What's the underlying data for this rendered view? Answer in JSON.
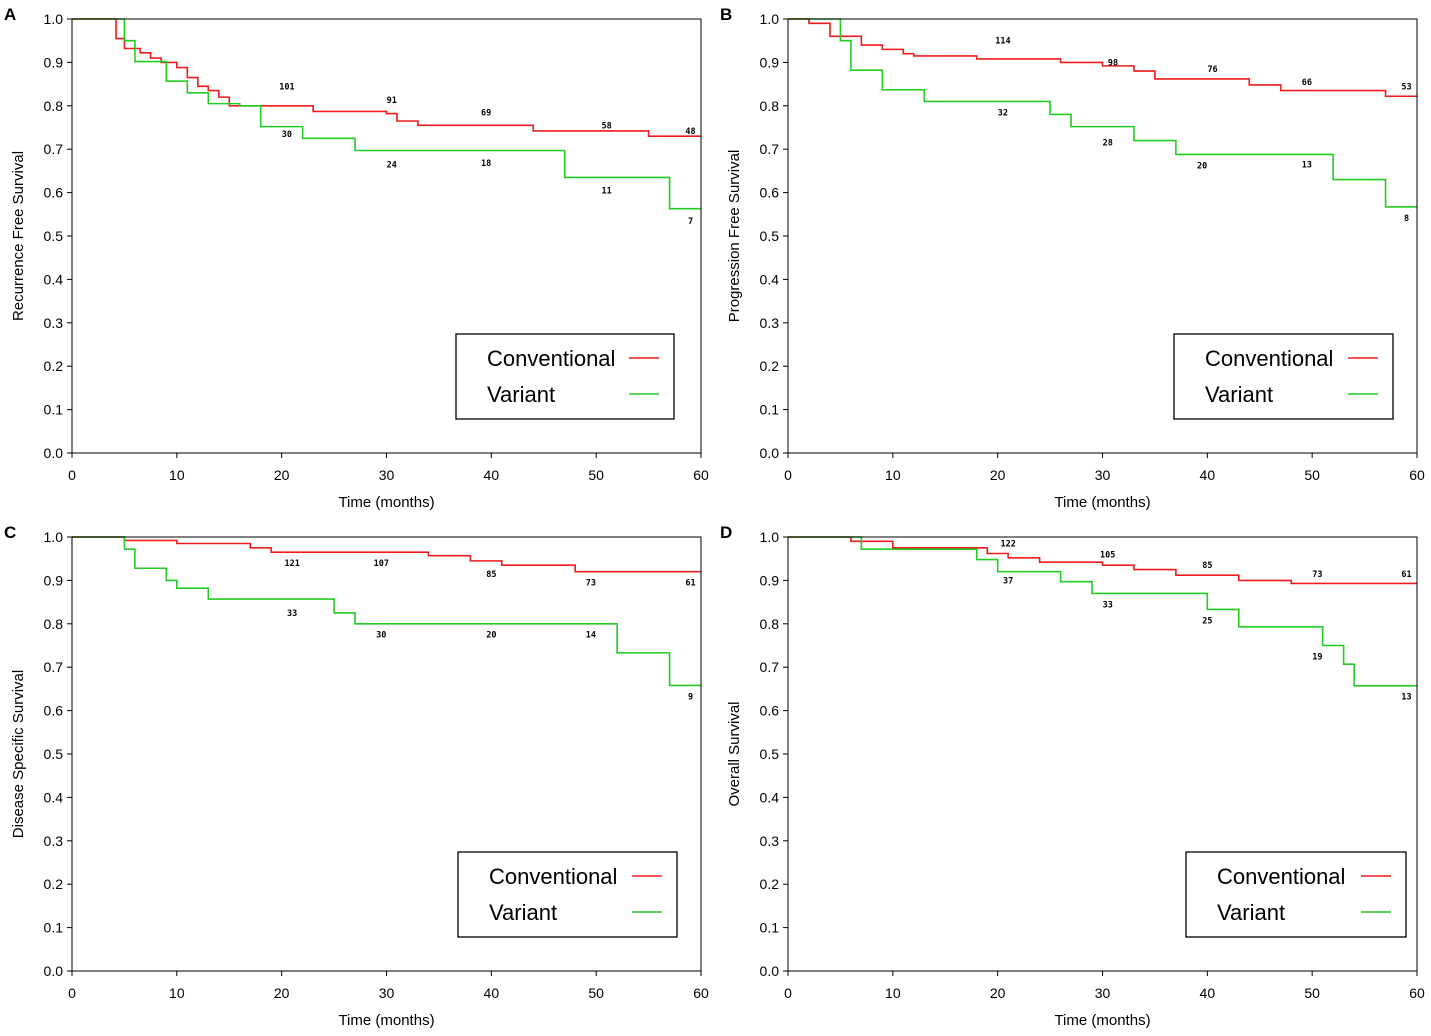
{
  "legend_labels": [
    "Conventional",
    "Variant"
  ],
  "colors": {
    "Conventional": "#ee1c1c",
    "Variant": "#22cc22"
  },
  "chart_data": [
    {
      "panel": "A",
      "type": "line",
      "title": "",
      "xlabel": "Time (months)",
      "ylabel": "Recurrence Free Survival",
      "xlim": [
        0,
        60
      ],
      "ylim": [
        0,
        1.0
      ],
      "xticks": [
        "0",
        "10",
        "20",
        "30",
        "40",
        "50",
        "60"
      ],
      "yticks": [
        "0.0",
        "0.1",
        "0.2",
        "0.3",
        "0.4",
        "0.5",
        "0.6",
        "0.7",
        "0.8",
        "0.9",
        "1.0"
      ],
      "legend_position": "bottom-right",
      "series": [
        {
          "name": "Conventional",
          "color": "#ee1c1c",
          "steps": [
            [
              0,
              1.0
            ],
            [
              4.2,
              0.955
            ],
            [
              5,
              0.932
            ],
            [
              6.5,
              0.922
            ],
            [
              7.5,
              0.91
            ],
            [
              8.5,
              0.9
            ],
            [
              10,
              0.888
            ],
            [
              11,
              0.865
            ],
            [
              12,
              0.845
            ],
            [
              13,
              0.835
            ],
            [
              14,
              0.82
            ],
            [
              15,
              0.8
            ],
            [
              23,
              0.787
            ],
            [
              30,
              0.782
            ],
            [
              31,
              0.765
            ],
            [
              33,
              0.755
            ],
            [
              44,
              0.742
            ],
            [
              55,
              0.73
            ],
            [
              60,
              0.73
            ]
          ],
          "risk_labels": [
            {
              "x": 20.5,
              "y": 0.845,
              "text": "101"
            },
            {
              "x": 30.5,
              "y": 0.813,
              "text": "91"
            },
            {
              "x": 39.5,
              "y": 0.785,
              "text": "69"
            },
            {
              "x": 51,
              "y": 0.755,
              "text": "58"
            },
            {
              "x": 59,
              "y": 0.742,
              "text": "48"
            }
          ]
        },
        {
          "name": "Variant",
          "color": "#22cc22",
          "steps": [
            [
              0,
              1.0
            ],
            [
              5,
              0.95
            ],
            [
              6,
              0.902
            ],
            [
              9,
              0.857
            ],
            [
              11,
              0.83
            ],
            [
              13,
              0.805
            ],
            [
              16,
              0.8
            ],
            [
              18,
              0.752
            ],
            [
              22,
              0.725
            ],
            [
              27,
              0.697
            ],
            [
              47,
              0.635
            ],
            [
              57,
              0.563
            ],
            [
              60,
              0.563
            ]
          ],
          "risk_labels": [
            {
              "x": 20.5,
              "y": 0.735,
              "text": "30"
            },
            {
              "x": 30.5,
              "y": 0.665,
              "text": "24"
            },
            {
              "x": 39.5,
              "y": 0.668,
              "text": "18"
            },
            {
              "x": 51,
              "y": 0.605,
              "text": "11"
            },
            {
              "x": 59,
              "y": 0.535,
              "text": "7"
            }
          ]
        }
      ]
    },
    {
      "panel": "B",
      "type": "line",
      "title": "",
      "xlabel": "Time (months)",
      "ylabel": "Progression Free Survival",
      "xlim": [
        0,
        60
      ],
      "ylim": [
        0,
        1.0
      ],
      "xticks": [
        "0",
        "10",
        "20",
        "30",
        "40",
        "50",
        "60"
      ],
      "yticks": [
        "0.0",
        "0.1",
        "0.2",
        "0.3",
        "0.4",
        "0.5",
        "0.6",
        "0.7",
        "0.8",
        "0.9",
        "1.0"
      ],
      "legend_position": "bottom-right",
      "series": [
        {
          "name": "Conventional",
          "color": "#ee1c1c",
          "steps": [
            [
              0,
              1.0
            ],
            [
              2,
              0.99
            ],
            [
              4,
              0.96
            ],
            [
              7,
              0.94
            ],
            [
              9,
              0.93
            ],
            [
              11,
              0.92
            ],
            [
              12,
              0.915
            ],
            [
              18,
              0.908
            ],
            [
              26,
              0.9
            ],
            [
              30,
              0.892
            ],
            [
              33,
              0.88
            ],
            [
              35,
              0.862
            ],
            [
              44,
              0.848
            ],
            [
              47,
              0.835
            ],
            [
              57,
              0.822
            ],
            [
              60,
              0.822
            ]
          ],
          "risk_labels": [
            {
              "x": 20.5,
              "y": 0.95,
              "text": "114"
            },
            {
              "x": 31,
              "y": 0.9,
              "text": "98"
            },
            {
              "x": 40.5,
              "y": 0.885,
              "text": "76"
            },
            {
              "x": 49.5,
              "y": 0.855,
              "text": "66"
            },
            {
              "x": 59,
              "y": 0.845,
              "text": "53"
            }
          ]
        },
        {
          "name": "Variant",
          "color": "#22cc22",
          "steps": [
            [
              0,
              1.0
            ],
            [
              5,
              0.95
            ],
            [
              6,
              0.882
            ],
            [
              9,
              0.837
            ],
            [
              13,
              0.81
            ],
            [
              25,
              0.78
            ],
            [
              27,
              0.752
            ],
            [
              33,
              0.72
            ],
            [
              37,
              0.688
            ],
            [
              52,
              0.63
            ],
            [
              57,
              0.567
            ],
            [
              60,
              0.567
            ]
          ],
          "risk_labels": [
            {
              "x": 20.5,
              "y": 0.785,
              "text": "32"
            },
            {
              "x": 30.5,
              "y": 0.715,
              "text": "28"
            },
            {
              "x": 39.5,
              "y": 0.662,
              "text": "20"
            },
            {
              "x": 49.5,
              "y": 0.665,
              "text": "13"
            },
            {
              "x": 59,
              "y": 0.542,
              "text": "8"
            }
          ]
        }
      ]
    },
    {
      "panel": "C",
      "type": "line",
      "title": "",
      "xlabel": "Time (months)",
      "ylabel": "Disease Specific Survival",
      "xlim": [
        0,
        60
      ],
      "ylim": [
        0,
        1.0
      ],
      "xticks": [
        "0",
        "10",
        "20",
        "30",
        "40",
        "50",
        "60"
      ],
      "yticks": [
        "0.0",
        "0.1",
        "0.2",
        "0.3",
        "0.4",
        "0.5",
        "0.6",
        "0.7",
        "0.8",
        "0.9",
        "1.0"
      ],
      "legend_position": "bottom-right",
      "series": [
        {
          "name": "Conventional",
          "color": "#ee1c1c",
          "steps": [
            [
              0,
              1.0
            ],
            [
              5,
              0.992
            ],
            [
              10,
              0.985
            ],
            [
              17,
              0.975
            ],
            [
              19,
              0.965
            ],
            [
              34,
              0.957
            ],
            [
              38,
              0.945
            ],
            [
              41,
              0.935
            ],
            [
              48,
              0.92
            ],
            [
              60,
              0.92
            ]
          ],
          "risk_labels": [
            {
              "x": 21,
              "y": 0.94,
              "text": "121"
            },
            {
              "x": 29.5,
              "y": 0.94,
              "text": "107"
            },
            {
              "x": 40,
              "y": 0.915,
              "text": "85"
            },
            {
              "x": 49.5,
              "y": 0.895,
              "text": "73"
            },
            {
              "x": 59,
              "y": 0.895,
              "text": "61"
            }
          ]
        },
        {
          "name": "Variant",
          "color": "#22cc22",
          "steps": [
            [
              0,
              1.0
            ],
            [
              5,
              0.972
            ],
            [
              6,
              0.928
            ],
            [
              9,
              0.9
            ],
            [
              10,
              0.882
            ],
            [
              13,
              0.857
            ],
            [
              25,
              0.825
            ],
            [
              27,
              0.8
            ],
            [
              52,
              0.733
            ],
            [
              57,
              0.658
            ],
            [
              60,
              0.658
            ]
          ],
          "risk_labels": [
            {
              "x": 21,
              "y": 0.825,
              "text": "33"
            },
            {
              "x": 29.5,
              "y": 0.775,
              "text": "30"
            },
            {
              "x": 40,
              "y": 0.775,
              "text": "20"
            },
            {
              "x": 49.5,
              "y": 0.775,
              "text": "14"
            },
            {
              "x": 59,
              "y": 0.632,
              "text": "9"
            }
          ]
        }
      ]
    },
    {
      "panel": "D",
      "type": "line",
      "title": "",
      "xlabel": "Time (months)",
      "ylabel": "Overall Survival",
      "xlim": [
        0,
        60
      ],
      "ylim": [
        0,
        1.0
      ],
      "xticks": [
        "0",
        "10",
        "20",
        "30",
        "40",
        "50",
        "60"
      ],
      "yticks": [
        "0.0",
        "0.1",
        "0.2",
        "0.3",
        "0.4",
        "0.5",
        "0.6",
        "0.7",
        "0.8",
        "0.9",
        "1.0"
      ],
      "legend_position": "bottom-right",
      "series": [
        {
          "name": "Conventional",
          "color": "#ee1c1c",
          "steps": [
            [
              0,
              1.0
            ],
            [
              6,
              0.99
            ],
            [
              10,
              0.975
            ],
            [
              19,
              0.962
            ],
            [
              21,
              0.952
            ],
            [
              24,
              0.942
            ],
            [
              30,
              0.935
            ],
            [
              33,
              0.925
            ],
            [
              37,
              0.912
            ],
            [
              43,
              0.9
            ],
            [
              48,
              0.893
            ],
            [
              60,
              0.893
            ]
          ],
          "risk_labels": [
            {
              "x": 21,
              "y": 0.985,
              "text": "122"
            },
            {
              "x": 30.5,
              "y": 0.96,
              "text": "105"
            },
            {
              "x": 40,
              "y": 0.935,
              "text": "85"
            },
            {
              "x": 50.5,
              "y": 0.915,
              "text": "73"
            },
            {
              "x": 59,
              "y": 0.915,
              "text": "61"
            }
          ]
        },
        {
          "name": "Variant",
          "color": "#22cc22",
          "steps": [
            [
              0,
              1.0
            ],
            [
              7,
              0.972
            ],
            [
              18,
              0.948
            ],
            [
              20,
              0.92
            ],
            [
              26,
              0.897
            ],
            [
              29,
              0.87
            ],
            [
              40,
              0.833
            ],
            [
              43,
              0.793
            ],
            [
              51,
              0.75
            ],
            [
              53,
              0.707
            ],
            [
              54,
              0.657
            ],
            [
              60,
              0.657
            ]
          ],
          "risk_labels": [
            {
              "x": 21,
              "y": 0.9,
              "text": "37"
            },
            {
              "x": 30.5,
              "y": 0.845,
              "text": "33"
            },
            {
              "x": 40,
              "y": 0.808,
              "text": "25"
            },
            {
              "x": 50.5,
              "y": 0.725,
              "text": "19"
            },
            {
              "x": 59,
              "y": 0.632,
              "text": "13"
            }
          ]
        }
      ]
    }
  ]
}
